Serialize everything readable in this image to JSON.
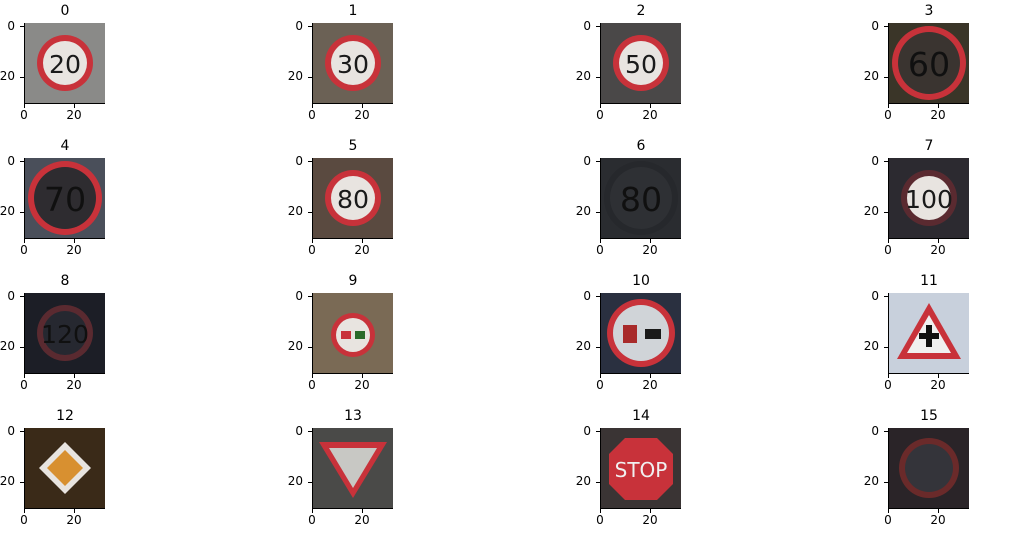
{
  "axis": {
    "y_ticks": [
      "0",
      "20"
    ],
    "x_ticks": [
      "0",
      "20"
    ]
  },
  "panels": [
    {
      "label": "0",
      "sign": "speed limit 20",
      "sign_text": "20"
    },
    {
      "label": "1",
      "sign": "speed limit 30",
      "sign_text": "30"
    },
    {
      "label": "2",
      "sign": "speed limit 50",
      "sign_text": "50"
    },
    {
      "label": "3",
      "sign": "speed limit 60",
      "sign_text": "60"
    },
    {
      "label": "4",
      "sign": "speed limit 70",
      "sign_text": "70"
    },
    {
      "label": "5",
      "sign": "speed limit 80",
      "sign_text": "80"
    },
    {
      "label": "6",
      "sign": "end of speed limit 80",
      "sign_text": "80"
    },
    {
      "label": "7",
      "sign": "speed limit 100",
      "sign_text": "100"
    },
    {
      "label": "8",
      "sign": "speed limit 120",
      "sign_text": "120"
    },
    {
      "label": "9",
      "sign": "no overtaking",
      "sign_text": ""
    },
    {
      "label": "10",
      "sign": "no overtaking trucks",
      "sign_text": ""
    },
    {
      "label": "11",
      "sign": "right of way at next intersection",
      "sign_text": ""
    },
    {
      "label": "12",
      "sign": "priority road",
      "sign_text": ""
    },
    {
      "label": "13",
      "sign": "yield",
      "sign_text": ""
    },
    {
      "label": "14",
      "sign": "stop",
      "sign_text": "STOP"
    },
    {
      "label": "15",
      "sign": "no vehicles",
      "sign_text": ""
    }
  ]
}
